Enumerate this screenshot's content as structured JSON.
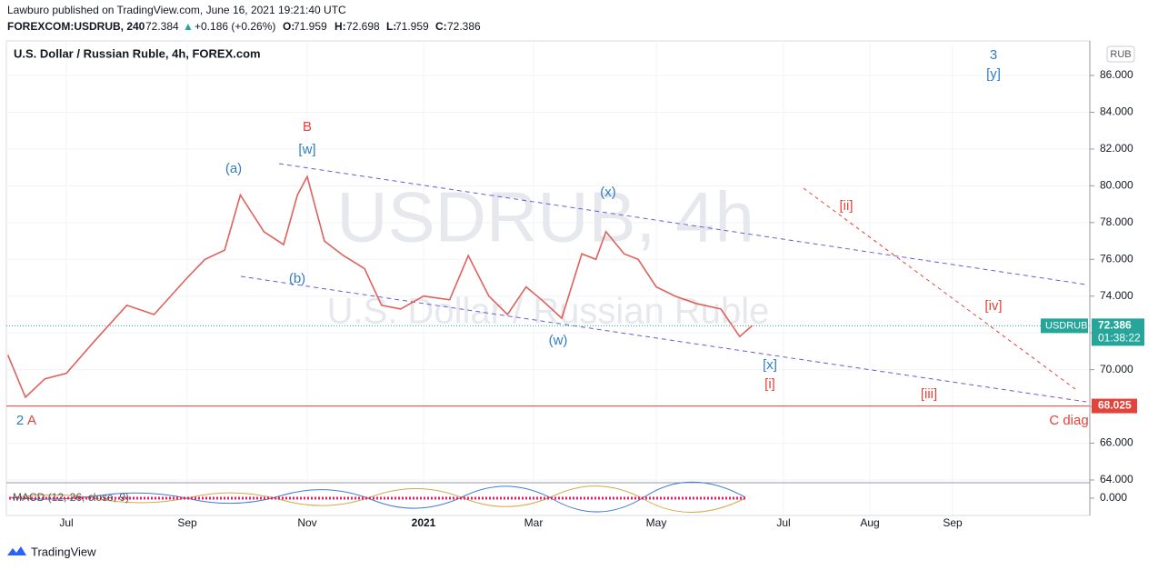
{
  "header": {
    "publisher": "Lawburo published on TradingView.com, June 16, 2021 19:21:40 UTC",
    "symbol": "FOREXCOM:USDRUB, 240",
    "last": "72.384",
    "arrow": "▲",
    "change": "+0.186 (+0.26%)",
    "open_label": "O:",
    "open": "71.959",
    "high_label": "H:",
    "high": "72.698",
    "low_label": "L:",
    "low": "71.959",
    "close_label": "C:",
    "close": "72.386"
  },
  "chart_data": {
    "type": "line",
    "title": "U.S. Dollar / Russian Ruble, 4h, FOREX.com",
    "watermark": "USDRUB, 4h",
    "watermark_sub": "U.S. Dollar / Russian Ruble",
    "currency": "RUB",
    "x": [
      "2020-06-01",
      "2020-06-10",
      "2020-06-20",
      "2020-07-01",
      "2020-07-15",
      "2020-08-01",
      "2020-08-15",
      "2020-09-01",
      "2020-09-10",
      "2020-09-20",
      "2020-09-28",
      "2020-10-10",
      "2020-10-20",
      "2020-10-27",
      "2020-11-01",
      "2020-11-10",
      "2020-11-20",
      "2020-12-01",
      "2020-12-10",
      "2020-12-20",
      "2021-01-01",
      "2021-01-15",
      "2021-01-25",
      "2021-02-05",
      "2021-02-15",
      "2021-02-25",
      "2021-03-05",
      "2021-03-15",
      "2021-03-25",
      "2021-04-01",
      "2021-04-06",
      "2021-04-15",
      "2021-04-22",
      "2021-05-01",
      "2021-05-10",
      "2021-05-20",
      "2021-06-01",
      "2021-06-10",
      "2021-06-16"
    ],
    "series": [
      {
        "name": "USDRUB",
        "color": "#e0605a",
        "values": [
          70.8,
          68.5,
          69.5,
          69.8,
          71.5,
          73.5,
          73.0,
          75.0,
          76.0,
          76.5,
          79.5,
          77.5,
          76.8,
          79.5,
          80.5,
          77.0,
          76.2,
          75.5,
          73.5,
          73.3,
          74.0,
          73.8,
          76.2,
          74.0,
          73.0,
          74.5,
          73.8,
          72.8,
          76.3,
          76.0,
          77.5,
          76.3,
          76.0,
          74.5,
          74.0,
          73.6,
          73.3,
          71.8,
          72.4
        ]
      }
    ],
    "last_price": {
      "value": 72.386,
      "label": "72.386"
    },
    "countdown": "01:38:22",
    "level": {
      "value": 68.025,
      "label": "68.025"
    },
    "ylim": [
      63.9,
      87.88
    ],
    "yticks": [
      {
        "value": 64,
        "label": "64.000"
      },
      {
        "value": 66,
        "label": "66.000"
      },
      {
        "value": 68,
        "label": "68.000"
      },
      {
        "value": 70,
        "label": "70.000"
      },
      {
        "value": 72,
        "label": "72.000"
      },
      {
        "value": 74,
        "label": "74.000"
      },
      {
        "value": 76,
        "label": "76.000"
      },
      {
        "value": 78,
        "label": "78.000"
      },
      {
        "value": 80,
        "label": "80.000"
      },
      {
        "value": 82,
        "label": "82.000"
      },
      {
        "value": 84,
        "label": "84.000"
      },
      {
        "value": 86,
        "label": "86.000"
      }
    ],
    "xticks": [
      {
        "value": "2020-07-01",
        "label": "Jul"
      },
      {
        "value": "2020-09-01",
        "label": "Sep"
      },
      {
        "value": "2020-11-01",
        "label": "Nov"
      },
      {
        "value": "2021-01-01",
        "label": "2021"
      },
      {
        "value": "2021-03-01",
        "label": "Mar"
      },
      {
        "value": "2021-05-01",
        "label": "May"
      },
      {
        "value": "2021-07-01",
        "label": "Jul"
      },
      {
        "value": "2021-08-01",
        "label": "Aug"
      },
      {
        "value": "2021-09-01",
        "label": "Sep"
      }
    ],
    "grid": true,
    "annotations": [
      "B",
      "[w]",
      "(a)",
      "(b)",
      "(x)",
      "(w)",
      "[x]",
      "[i]",
      "[ii]",
      "[iii]",
      "[iv]",
      "3",
      "[y]",
      "2",
      "A",
      "C diag"
    ],
    "indicator": {
      "label": "MACD (12, 26, close, 9)",
      "zero": {
        "value": 0,
        "label": "0.000"
      }
    }
  },
  "footer": {
    "brand": "TradingView"
  }
}
